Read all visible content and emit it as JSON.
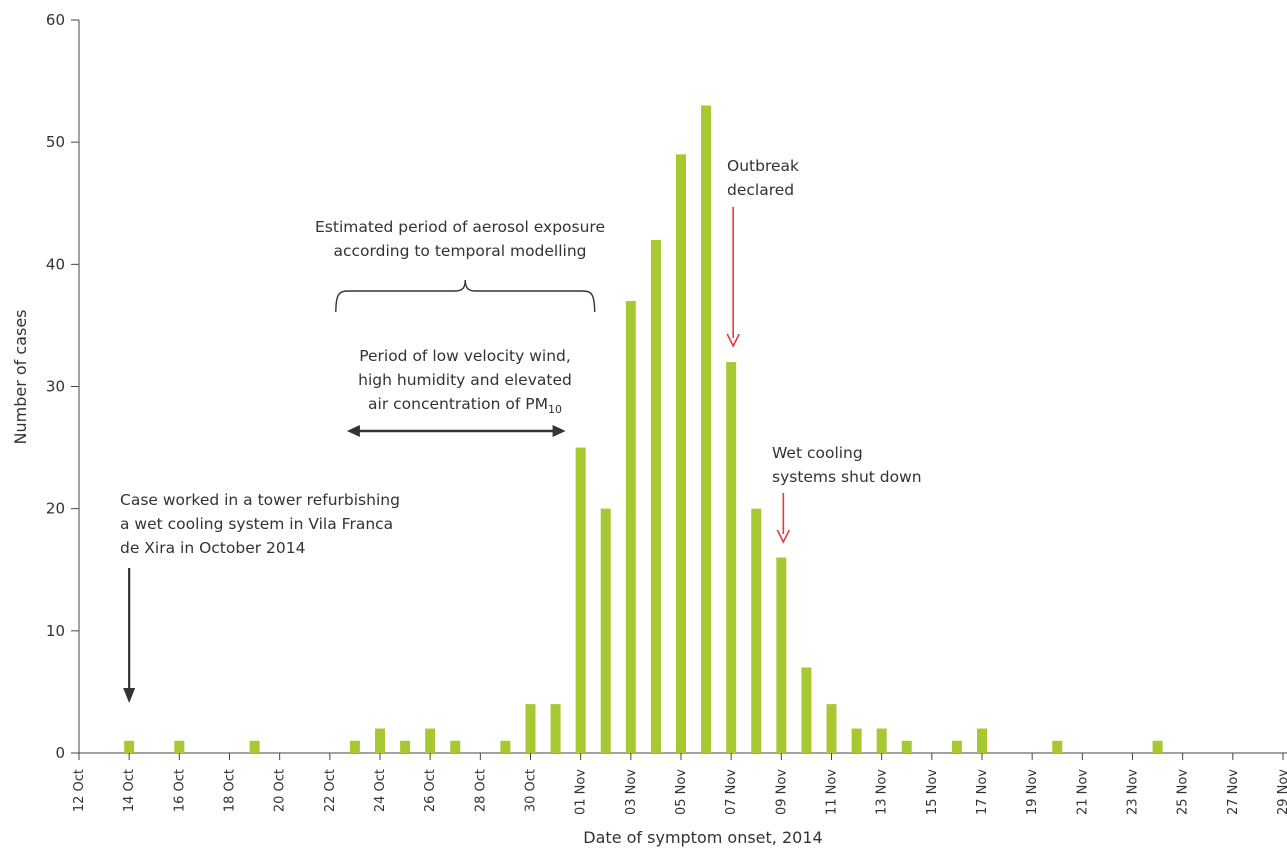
{
  "chart_data": {
    "type": "bar",
    "xlabel": "Date of symptom onset, 2014",
    "ylabel": "Number of cases",
    "ylim": [
      0,
      60
    ],
    "yticks": [
      0,
      10,
      20,
      30,
      40,
      50,
      60
    ],
    "x_range": [
      "12 Oct",
      "29 Nov"
    ],
    "xticks": [
      "12 Oct",
      "14 Oct",
      "16 Oct",
      "18 Oct",
      "20 Oct",
      "22 Oct",
      "24 Oct",
      "26 Oct",
      "28 Oct",
      "30 Oct",
      "01 Nov",
      "03 Nov",
      "05 Nov",
      "07 Nov",
      "09 Nov",
      "11 Nov",
      "13 Nov",
      "15 Nov",
      "17 Nov",
      "19 Nov",
      "21 Nov",
      "23 Nov",
      "25 Nov",
      "27 Nov",
      "29 Nov"
    ],
    "bar_color": "#a8c832",
    "bars": [
      {
        "date": "14 Oct",
        "cases": 1
      },
      {
        "date": "16 Oct",
        "cases": 1
      },
      {
        "date": "19 Oct",
        "cases": 1
      },
      {
        "date": "23 Oct",
        "cases": 1
      },
      {
        "date": "24 Oct",
        "cases": 2
      },
      {
        "date": "25 Oct",
        "cases": 1
      },
      {
        "date": "26 Oct",
        "cases": 2
      },
      {
        "date": "27 Oct",
        "cases": 1
      },
      {
        "date": "29 Oct",
        "cases": 1
      },
      {
        "date": "30 Oct",
        "cases": 4
      },
      {
        "date": "31 Oct",
        "cases": 4
      },
      {
        "date": "01 Nov",
        "cases": 25
      },
      {
        "date": "02 Nov",
        "cases": 20
      },
      {
        "date": "03 Nov",
        "cases": 37
      },
      {
        "date": "04 Nov",
        "cases": 42
      },
      {
        "date": "05 Nov",
        "cases": 49
      },
      {
        "date": "06 Nov",
        "cases": 53
      },
      {
        "date": "07 Nov",
        "cases": 32
      },
      {
        "date": "08 Nov",
        "cases": 20
      },
      {
        "date": "09 Nov",
        "cases": 16
      },
      {
        "date": "10 Nov",
        "cases": 7
      },
      {
        "date": "11 Nov",
        "cases": 4
      },
      {
        "date": "12 Nov",
        "cases": 2
      },
      {
        "date": "13 Nov",
        "cases": 2
      },
      {
        "date": "14 Nov",
        "cases": 1
      },
      {
        "date": "16 Nov",
        "cases": 1
      },
      {
        "date": "17 Nov",
        "cases": 2
      },
      {
        "date": "20 Nov",
        "cases": 1
      },
      {
        "date": "24 Nov",
        "cases": 1
      }
    ],
    "annotations": {
      "case_tower": {
        "lines": [
          "Case worked in a tower refurbishing",
          "a wet cooling system in Vila Franca",
          "de Xira in October 2014"
        ],
        "arrow_date": "14 Oct",
        "arrow_color": "#333333"
      },
      "exposure": {
        "lines": [
          "Estimated period of aerosol exposure",
          "according to temporal modelling"
        ],
        "brace_from": "22 Oct",
        "brace_to": "01 Nov"
      },
      "wind": {
        "lines": [
          "Period of low velocity wind,",
          "high humidity and elevated"
        ],
        "last_line_text": "air concentration of  PM",
        "last_line_subscript": "10",
        "arrow_from": "23 Oct",
        "arrow_to": "31 Oct",
        "arrow_color": "#333333"
      },
      "outbreak": {
        "lines": [
          "Outbreak",
          "declared"
        ],
        "arrow_date": "07 Nov",
        "arrow_color": "#e8393a"
      },
      "cooling": {
        "lines": [
          "Wet cooling",
          "systems shut down"
        ],
        "arrow_date": "09 Nov",
        "arrow_color": "#e8393a"
      }
    }
  }
}
